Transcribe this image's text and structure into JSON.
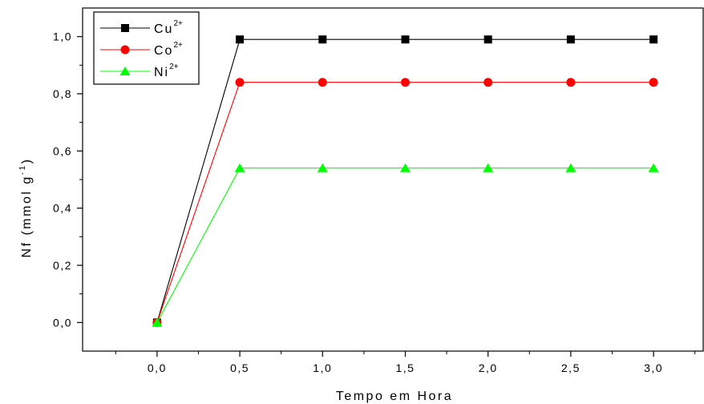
{
  "chart_data": {
    "type": "line",
    "xlabel": "Tempo em Hora",
    "ylabel": {
      "main": "Nf (mmol g",
      "sup": "-1",
      "end": ")"
    },
    "xlim": [
      -0.45,
      3.3
    ],
    "ylim": [
      -0.1,
      1.1
    ],
    "x_ticks": [
      {
        "value": 0.0,
        "label": "0,0"
      },
      {
        "value": 0.5,
        "label": "0,5"
      },
      {
        "value": 1.0,
        "label": "1,0"
      },
      {
        "value": 1.5,
        "label": "1,5"
      },
      {
        "value": 2.0,
        "label": "2,0"
      },
      {
        "value": 2.5,
        "label": "2,5"
      },
      {
        "value": 3.0,
        "label": "3,0"
      }
    ],
    "y_ticks": [
      {
        "value": 0.0,
        "label": "0,0"
      },
      {
        "value": 0.2,
        "label": "0,2"
      },
      {
        "value": 0.4,
        "label": "0,4"
      },
      {
        "value": 0.6,
        "label": "0,6"
      },
      {
        "value": 0.8,
        "label": "0,8"
      },
      {
        "value": 1.0,
        "label": "1,0"
      }
    ],
    "grid": false,
    "legend_position": "top-left",
    "x": [
      0.0,
      0.5,
      1.0,
      1.5,
      2.0,
      2.5,
      3.0
    ],
    "series": [
      {
        "name": "Cu",
        "sup": "2+",
        "color": "#000000",
        "marker": "square",
        "values": [
          0.0,
          0.99,
          0.99,
          0.99,
          0.99,
          0.99,
          0.99
        ]
      },
      {
        "name": "Co",
        "sup": "2+",
        "color": "#ff0000",
        "marker": "circle",
        "values": [
          0.0,
          0.84,
          0.84,
          0.84,
          0.84,
          0.84,
          0.84
        ]
      },
      {
        "name": "Ni",
        "sup": "2+",
        "color": "#00ff00",
        "marker": "triangle",
        "values": [
          0.0,
          0.54,
          0.54,
          0.54,
          0.54,
          0.54,
          0.54
        ]
      }
    ]
  }
}
